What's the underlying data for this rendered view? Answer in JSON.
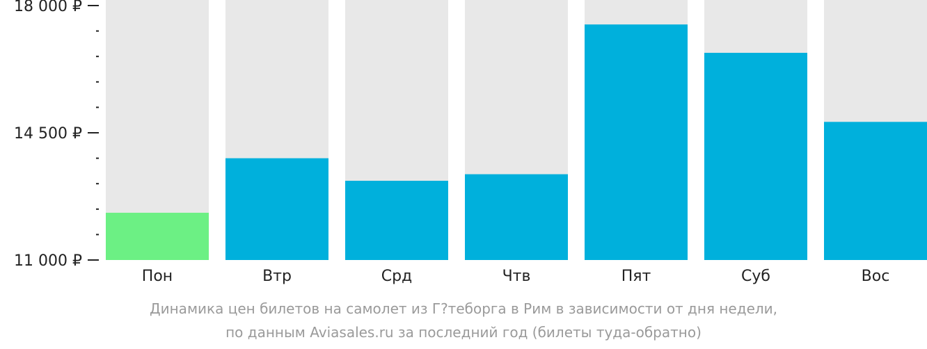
{
  "chart_data": {
    "type": "bar",
    "categories": [
      "Пон",
      "Втр",
      "Срд",
      "Чтв",
      "Пят",
      "Суб",
      "Вос"
    ],
    "values": [
      12300,
      13800,
      13180,
      13360,
      17480,
      16700,
      14800
    ],
    "ylim": [
      11000,
      18000
    ],
    "yticks": [
      {
        "value": 11000,
        "label": "11 000 ₽"
      },
      {
        "value": 14500,
        "label": "14 500 ₽"
      },
      {
        "value": 18000,
        "label": "18 000 ₽"
      }
    ],
    "minor_tick_step": 700,
    "bar_color": "#00b0dc",
    "min_bar_color": "#6cf084",
    "track_color": "#e8e8e8",
    "title": "",
    "xlabel": "",
    "ylabel": ""
  },
  "caption": {
    "line1": "Динамика цен билетов на самолет из Г?теборга в Рим в зависимости от дня недели,",
    "line2": "по данным Aviasales.ru за последний год (билеты туда-обратно)"
  }
}
